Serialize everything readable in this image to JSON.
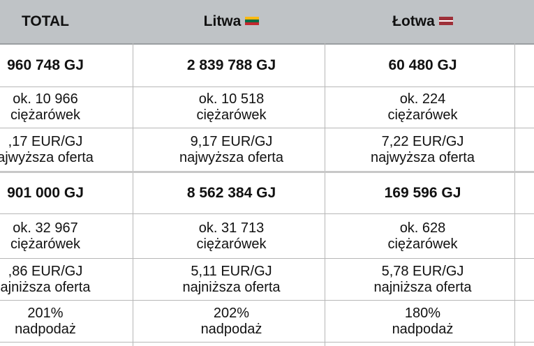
{
  "header": {
    "col0": "TOTAL",
    "col1": "Litwa",
    "col2": "Łotwa"
  },
  "colors": {
    "header_bg": "#bfc3c6",
    "lt_yellow": "#FDB913",
    "lt_green": "#006A44",
    "lt_red": "#C1272D",
    "lv_red": "#9E3039",
    "lv_white": "#FFFFFF"
  },
  "rows": {
    "sell_volume": [
      "960 748 GJ",
      "2 839 788 GJ",
      "60 480 GJ"
    ],
    "sell_trucks_1": [
      "ok. 10 966",
      "ok. 10 518",
      "ok. 224"
    ],
    "sell_trucks_2": [
      "ciężarówek",
      "ciężarówek",
      "ciężarówek"
    ],
    "sell_price_1": [
      ",17 EUR/GJ",
      "9,17 EUR/GJ",
      "7,22 EUR/GJ"
    ],
    "sell_price_2": [
      "ajwyższa oferta",
      "najwyższa oferta",
      "najwyższa oferta"
    ],
    "buy_volume": [
      "901 000 GJ",
      "8 562 384 GJ",
      "169 596 GJ"
    ],
    "buy_trucks_1": [
      "ok. 32 967",
      "ok. 31 713",
      "ok. 628"
    ],
    "buy_trucks_2": [
      "ciężarówek",
      "ciężarówek",
      "ciężarówek"
    ],
    "buy_price_1": [
      ",86 EUR/GJ",
      "5,11 EUR/GJ",
      "5,78 EUR/GJ"
    ],
    "buy_price_2": [
      "ajniższa oferta",
      "najniższa oferta",
      "najniższa oferta"
    ],
    "excess_1": [
      "201%",
      "202%",
      "180%"
    ],
    "excess_2": [
      "nadpodaż",
      "nadpodaż",
      "nadpodaż"
    ]
  }
}
